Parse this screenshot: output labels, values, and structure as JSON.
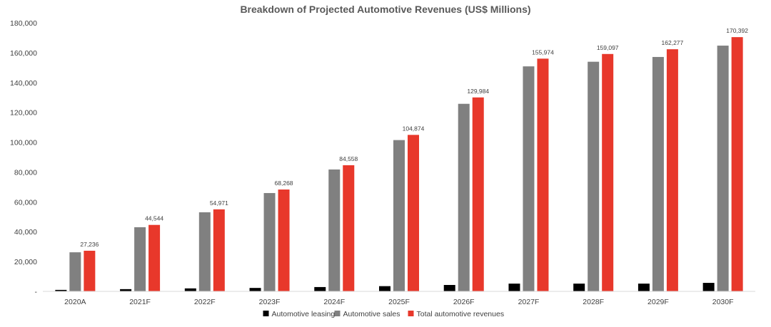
{
  "chart_data": {
    "type": "bar",
    "title": "Breakdown of Projected Automotive Revenues (US$ Millions)",
    "xlabel": "",
    "ylabel": "",
    "ylim": [
      0,
      180000
    ],
    "yticks": [
      0,
      20000,
      40000,
      60000,
      80000,
      100000,
      120000,
      140000,
      160000,
      180000
    ],
    "ytick_labels": [
      "-",
      "20,000",
      "40,000",
      "60,000",
      "80,000",
      "100,000",
      "120,000",
      "140,000",
      "160,000",
      "180,000"
    ],
    "categories": [
      "2020A",
      "2021F",
      "2022F",
      "2023F",
      "2024F",
      "2025F",
      "2026F",
      "2027F",
      "2028F",
      "2029F",
      "2030F"
    ],
    "series": [
      {
        "name": "Automotive leasing",
        "color": "#000000",
        "values": [
          1000,
          1500,
          2000,
          2300,
          2900,
          3500,
          4300,
          5200,
          5200,
          5200,
          5700
        ]
      },
      {
        "name": "Automotive sales",
        "color": "#808080",
        "values": [
          26200,
          43000,
          53000,
          65900,
          81700,
          101400,
          125700,
          150800,
          153900,
          157100,
          164700
        ]
      },
      {
        "name": "Total automotive revenues",
        "color": "#e8382b",
        "values": [
          27236,
          44544,
          54971,
          68268,
          84558,
          104874,
          129984,
          155974,
          159097,
          162277,
          170392
        ],
        "data_labels": [
          "27,236",
          "44,544",
          "54,971",
          "68,268",
          "84,558",
          "104,874",
          "129,984",
          "155,974",
          "159,097",
          "162,277",
          "170,392"
        ]
      }
    ],
    "grid": false,
    "legend_position": "bottom"
  }
}
